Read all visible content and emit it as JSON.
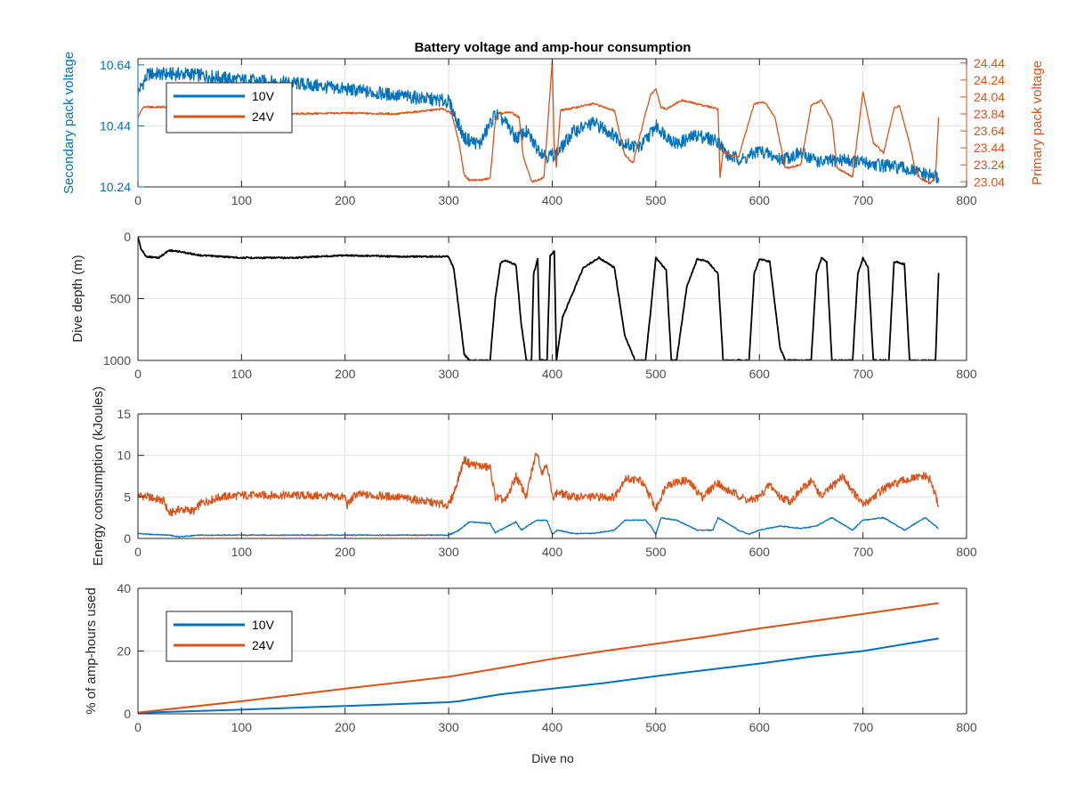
{
  "title": "Battery voltage and amp-hour consumption",
  "colors": {
    "c10": "#0072BD",
    "c24": "#D95319",
    "depth": "#000000",
    "grid": "#e3e3e3",
    "axis": "#262626",
    "tick": "#4d4d4d"
  },
  "chart_data": [
    {
      "type": "line",
      "panel": "voltage",
      "ylabel": "Secondary pack voltage",
      "ylabel_right": "Primary pack voltage",
      "xlim": [
        0,
        800
      ],
      "ylim": [
        10.24,
        10.66
      ],
      "ylim_right": [
        22.98,
        24.49
      ],
      "xticks": [
        0,
        100,
        200,
        300,
        400,
        500,
        600,
        700,
        800
      ],
      "yticks": [
        10.24,
        10.44,
        10.64
      ],
      "ytick_labels": [
        "10.24",
        "10.44",
        "10.64"
      ],
      "yticks_right": [
        23.04,
        23.24,
        23.44,
        23.64,
        23.84,
        24.04,
        24.24,
        24.44
      ],
      "ytick_labels_right": [
        "23.04",
        "23.24",
        "23.44",
        "23.64",
        "23.84",
        "24.04",
        "24.24",
        "24.44"
      ],
      "grid": true,
      "legend": {
        "placement": "top-left",
        "entries": [
          "10V",
          "24V"
        ]
      },
      "series": [
        {
          "name": "10V",
          "axis": "left",
          "noise": 0.022,
          "x": [
            0,
            10,
            50,
            100,
            150,
            200,
            250,
            300,
            305,
            315,
            330,
            345,
            355,
            365,
            375,
            385,
            395,
            405,
            420,
            440,
            460,
            470,
            485,
            500,
            520,
            540,
            560,
            570,
            585,
            600,
            620,
            640,
            660,
            680,
            700,
            720,
            740,
            760,
            773
          ],
          "y": [
            10.55,
            10.61,
            10.61,
            10.59,
            10.58,
            10.56,
            10.54,
            10.52,
            10.48,
            10.4,
            10.38,
            10.48,
            10.45,
            10.4,
            10.42,
            10.37,
            10.34,
            10.35,
            10.42,
            10.45,
            10.41,
            10.38,
            10.37,
            10.44,
            10.38,
            10.41,
            10.39,
            10.34,
            10.33,
            10.36,
            10.33,
            10.35,
            10.32,
            10.33,
            10.32,
            10.31,
            10.3,
            10.28,
            10.27
          ]
        },
        {
          "name": "24V",
          "axis": "right",
          "noise": 0.012,
          "x": [
            0,
            5,
            10,
            30,
            35,
            60,
            100,
            150,
            200,
            250,
            295,
            303,
            310,
            315,
            320,
            330,
            340,
            345,
            348,
            360,
            368,
            372,
            380,
            386,
            392,
            400,
            402,
            404,
            408,
            440,
            460,
            470,
            478,
            490,
            495,
            500,
            505,
            510,
            525,
            560,
            562,
            565,
            570,
            580,
            595,
            605,
            615,
            625,
            640,
            650,
            660,
            670,
            675,
            690,
            700,
            710,
            720,
            730,
            735,
            745,
            750,
            755,
            765,
            770,
            773
          ],
          "y": [
            23.8,
            23.92,
            23.92,
            23.92,
            23.86,
            23.87,
            23.85,
            23.84,
            23.85,
            23.84,
            23.9,
            23.84,
            23.5,
            23.12,
            23.06,
            23.06,
            23.08,
            23.76,
            23.84,
            23.86,
            23.8,
            23.34,
            23.04,
            23.06,
            23.1,
            24.46,
            23.4,
            23.22,
            23.88,
            23.96,
            23.88,
            23.36,
            23.26,
            23.84,
            24.06,
            24.14,
            23.92,
            23.9,
            24.0,
            23.9,
            23.1,
            23.4,
            23.36,
            23.34,
            23.96,
            23.98,
            23.8,
            23.2,
            23.24,
            23.94,
            24.0,
            23.76,
            23.2,
            23.1,
            24.1,
            23.5,
            23.38,
            23.9,
            23.94,
            23.5,
            23.2,
            23.08,
            23.02,
            23.1,
            23.8
          ]
        }
      ]
    },
    {
      "type": "line",
      "panel": "depth",
      "ylabel": "Dive depth (m)",
      "xlim": [
        0,
        800
      ],
      "ylim": [
        0,
        1000
      ],
      "y_reversed": true,
      "xticks": [
        0,
        100,
        200,
        300,
        400,
        500,
        600,
        700,
        800
      ],
      "yticks": [
        0,
        500,
        1000
      ],
      "ytick_labels": [
        "0",
        "500",
        "1000"
      ],
      "grid": true,
      "series": [
        {
          "name": "",
          "noise": 6,
          "x": [
            0,
            3,
            8,
            20,
            30,
            40,
            60,
            80,
            100,
            150,
            200,
            250,
            300,
            305,
            310,
            315,
            320,
            340,
            345,
            350,
            355,
            365,
            370,
            375,
            380,
            382,
            386,
            388,
            395,
            398,
            402,
            404,
            410,
            430,
            445,
            460,
            470,
            480,
            490,
            495,
            500,
            510,
            515,
            520,
            530,
            540,
            550,
            560,
            565,
            590,
            595,
            600,
            610,
            620,
            625,
            650,
            655,
            660,
            665,
            670,
            690,
            695,
            700,
            705,
            710,
            725,
            730,
            740,
            745,
            765,
            770,
            773,
            773.5
          ],
          "y": [
            0,
            100,
            160,
            170,
            110,
            120,
            150,
            160,
            170,
            170,
            150,
            160,
            160,
            260,
            600,
            950,
            1000,
            1000,
            500,
            210,
            190,
            230,
            700,
            1000,
            1000,
            300,
            180,
            1000,
            1000,
            150,
            120,
            1000,
            650,
            250,
            170,
            250,
            800,
            1000,
            1000,
            600,
            170,
            270,
            1000,
            1000,
            400,
            180,
            200,
            300,
            1000,
            1000,
            300,
            180,
            200,
            900,
            1000,
            1000,
            300,
            170,
            200,
            1000,
            1000,
            300,
            170,
            250,
            1000,
            1000,
            200,
            220,
            1000,
            1000,
            1000,
            300,
            300
          ]
        }
      ]
    },
    {
      "type": "line",
      "panel": "energy",
      "ylabel": "Energy consumption (kJoules)",
      "xlim": [
        0,
        800
      ],
      "ylim": [
        0,
        15
      ],
      "xticks": [
        0,
        100,
        200,
        300,
        400,
        500,
        600,
        700,
        800
      ],
      "yticks": [
        0,
        5,
        10,
        15
      ],
      "ytick_labels": [
        "0",
        "5",
        "10",
        "15"
      ],
      "grid": true,
      "series": [
        {
          "name": "24V",
          "noise": 0.5,
          "x": [
            0,
            10,
            25,
            30,
            40,
            55,
            60,
            80,
            100,
            150,
            200,
            202,
            210,
            250,
            300,
            305,
            315,
            320,
            340,
            345,
            355,
            365,
            375,
            380,
            385,
            390,
            395,
            400,
            405,
            420,
            440,
            460,
            470,
            485,
            495,
            500,
            510,
            530,
            545,
            560,
            565,
            575,
            590,
            600,
            610,
            620,
            630,
            650,
            660,
            680,
            700,
            720,
            740,
            760,
            765,
            773
          ],
          "y": [
            5.2,
            5.0,
            4.5,
            3.0,
            3.5,
            3.3,
            4.2,
            5.0,
            5.2,
            5.2,
            5.0,
            4.0,
            5.3,
            5.0,
            4.0,
            5.5,
            9.5,
            9.0,
            8.5,
            5.0,
            4.5,
            7.5,
            5.0,
            8.0,
            10.5,
            8.0,
            9.0,
            5.0,
            5.5,
            5.0,
            5.0,
            5.0,
            7.2,
            7.0,
            5.0,
            3.5,
            6.5,
            7.0,
            5.0,
            6.8,
            6.0,
            5.5,
            4.5,
            5.0,
            6.5,
            5.0,
            4.5,
            7.0,
            5.0,
            7.5,
            4.0,
            6.0,
            7.0,
            7.5,
            7.0,
            4.0
          ]
        },
        {
          "name": "10V",
          "noise": 0.06,
          "x": [
            0,
            10,
            30,
            40,
            60,
            100,
            150,
            200,
            250,
            300,
            310,
            320,
            340,
            345,
            350,
            365,
            370,
            385,
            395,
            400,
            405,
            420,
            440,
            460,
            470,
            490,
            495,
            500,
            505,
            520,
            540,
            555,
            560,
            580,
            590,
            600,
            620,
            640,
            655,
            670,
            690,
            700,
            720,
            740,
            760,
            773
          ],
          "y": [
            0.6,
            0.5,
            0.4,
            0.2,
            0.4,
            0.4,
            0.4,
            0.4,
            0.4,
            0.4,
            1.0,
            2.0,
            1.8,
            0.7,
            1.0,
            2.0,
            1.0,
            2.2,
            2.2,
            0.5,
            1.0,
            0.6,
            0.6,
            1.0,
            2.2,
            2.2,
            1.5,
            0.5,
            2.5,
            2.2,
            1.0,
            1.0,
            2.5,
            1.0,
            0.5,
            1.0,
            1.5,
            1.2,
            1.5,
            2.5,
            1.0,
            2.2,
            2.5,
            1.0,
            2.5,
            1.2
          ]
        }
      ]
    },
    {
      "type": "line",
      "panel": "amphours",
      "xlabel": "Dive no",
      "ylabel": "% of amp-hours used",
      "xlim": [
        0,
        800
      ],
      "ylim": [
        0,
        40
      ],
      "xticks": [
        0,
        100,
        200,
        300,
        400,
        500,
        600,
        700,
        800
      ],
      "yticks": [
        0,
        20,
        40
      ],
      "ytick_labels": [
        "0",
        "20",
        "40"
      ],
      "grid": true,
      "legend": {
        "placement": "top-left",
        "entries": [
          "10V",
          "24V"
        ]
      },
      "series": [
        {
          "name": "10V",
          "noise": 0,
          "x": [
            0,
            100,
            200,
            300,
            310,
            350,
            400,
            450,
            500,
            550,
            600,
            650,
            700,
            773
          ],
          "y": [
            0.3,
            1.3,
            2.5,
            3.7,
            4.0,
            6.2,
            8.0,
            9.8,
            12.0,
            14.0,
            16.0,
            18.2,
            20.0,
            24.0
          ]
        },
        {
          "name": "24V",
          "noise": 0,
          "x": [
            0,
            100,
            200,
            300,
            350,
            400,
            450,
            500,
            550,
            600,
            650,
            700,
            773
          ],
          "y": [
            0.4,
            4.0,
            8.0,
            11.8,
            14.6,
            17.5,
            20.0,
            22.3,
            24.6,
            27.2,
            29.5,
            31.8,
            35.3
          ]
        }
      ]
    }
  ]
}
